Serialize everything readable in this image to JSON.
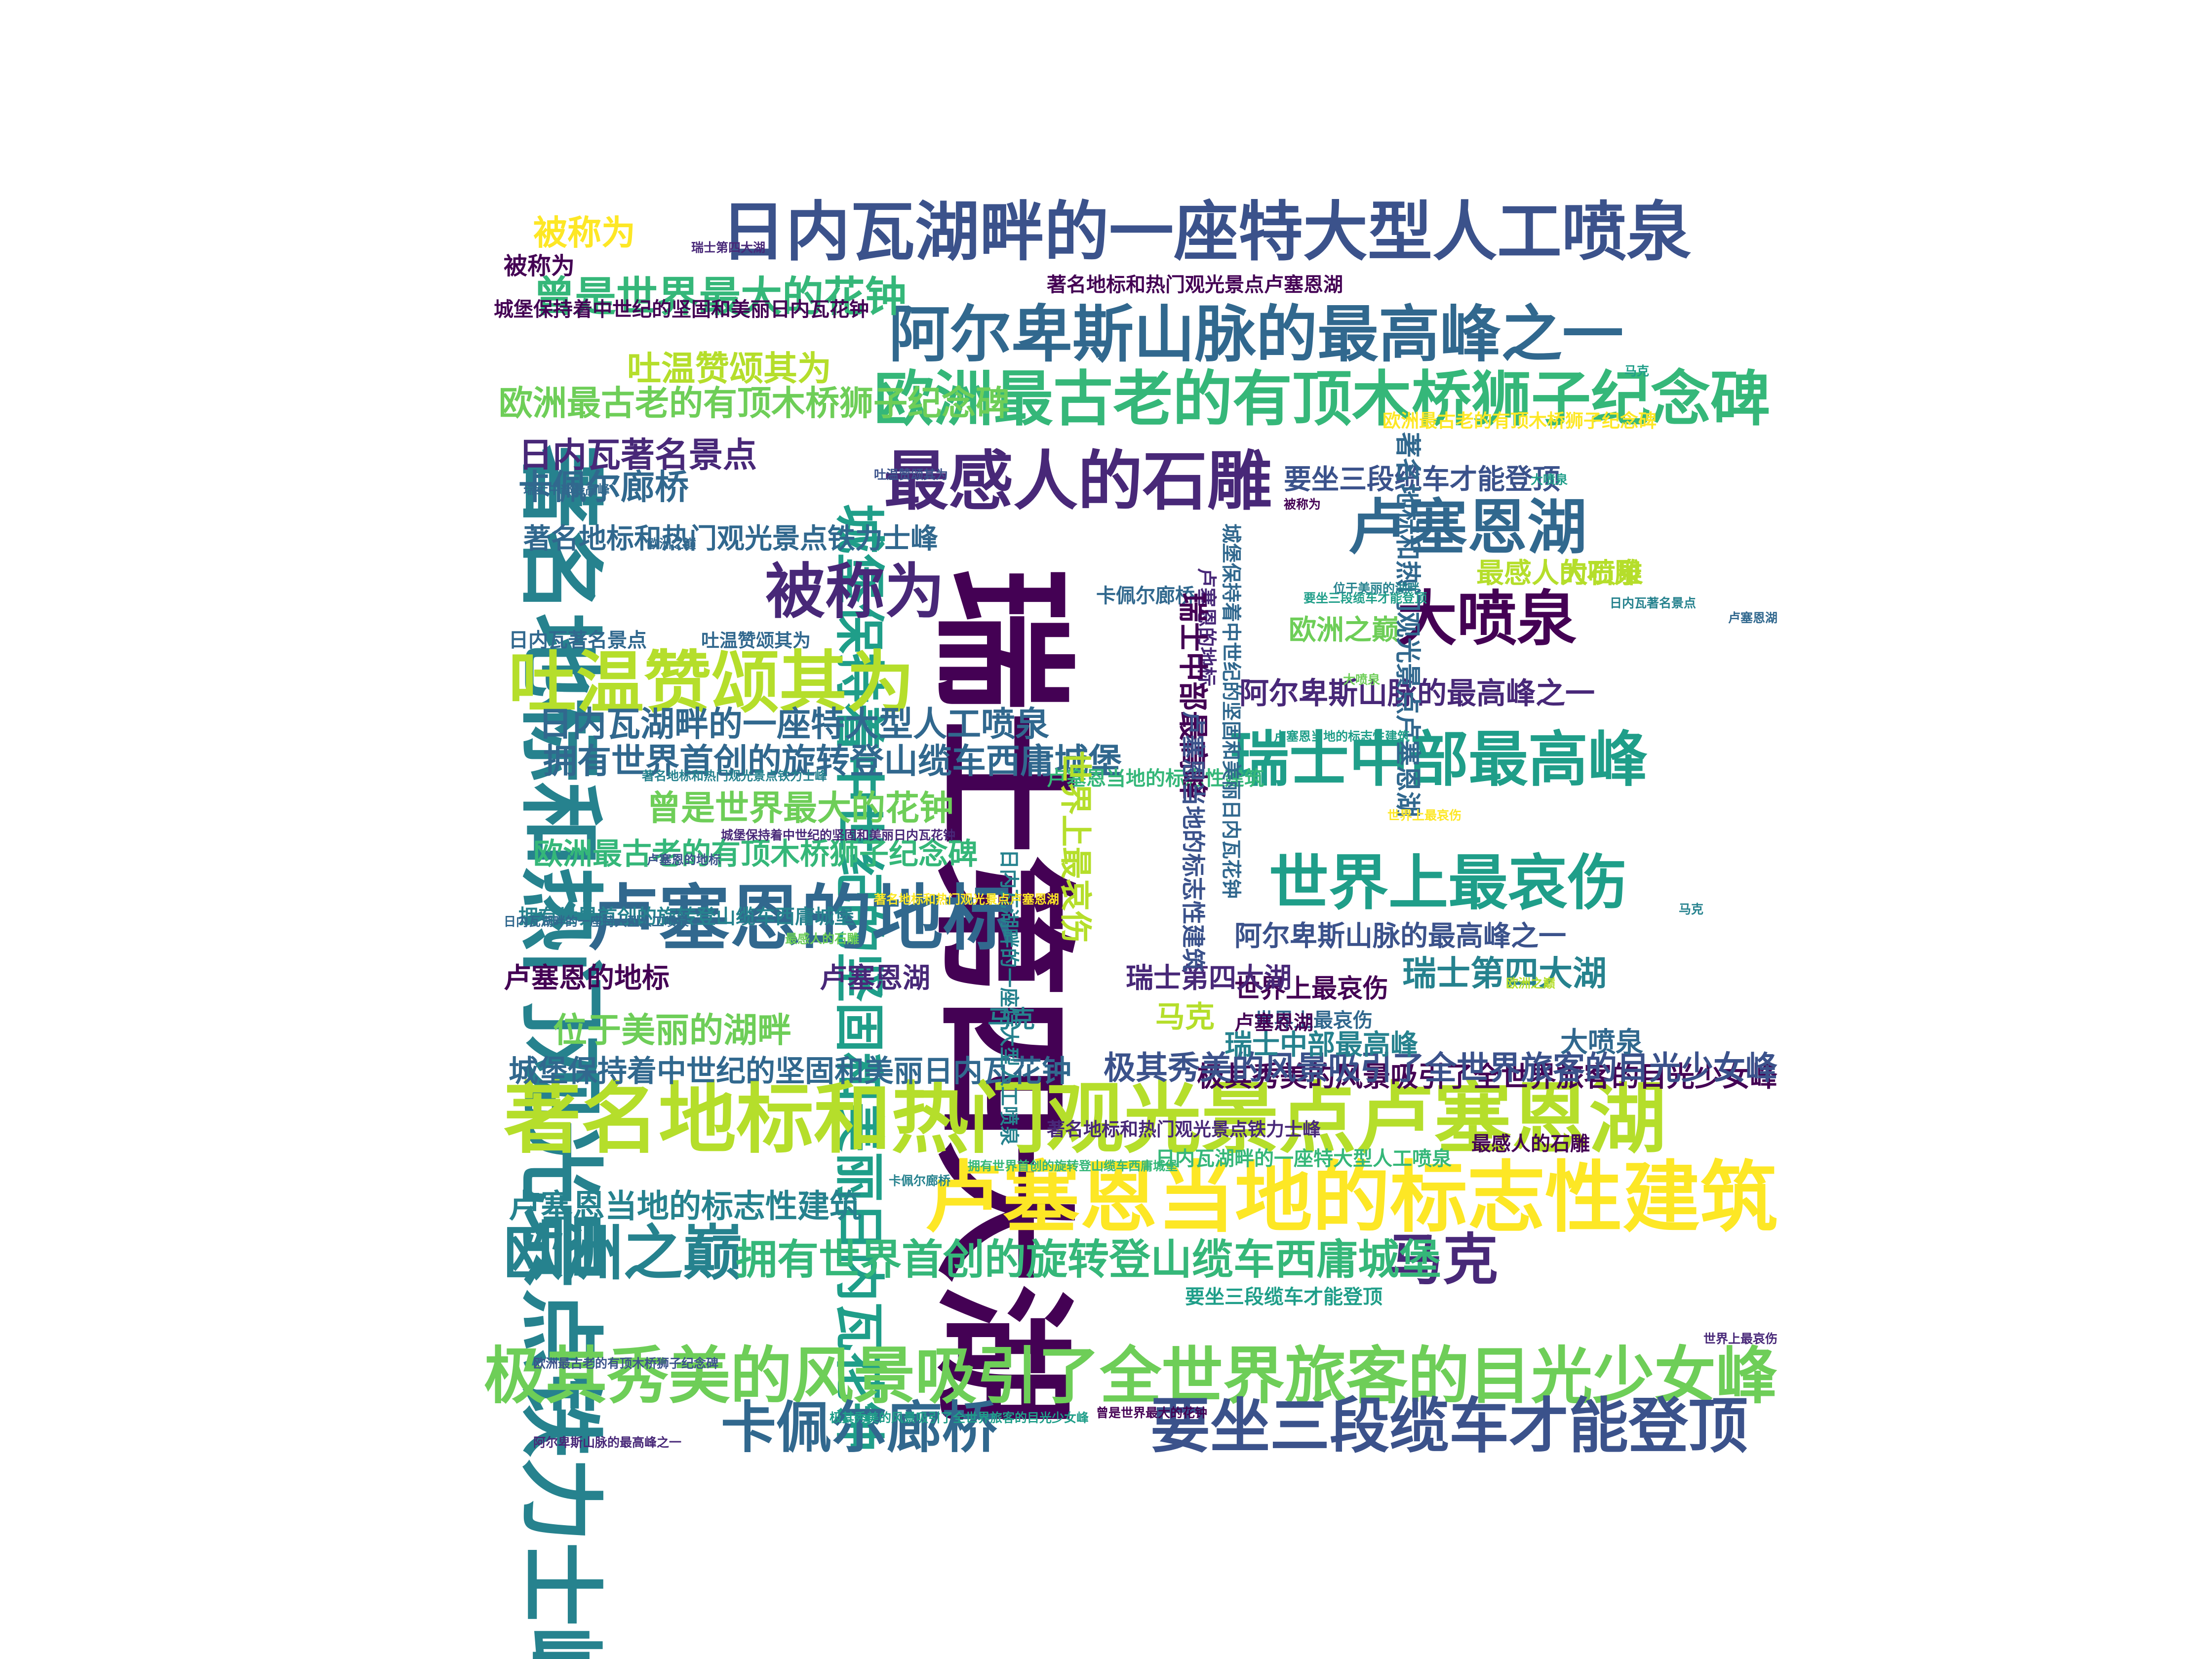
{
  "title": "",
  "colors": {
    "background": "#ffffff",
    "palette": [
      "#440154",
      "#482878",
      "#3b528b",
      "#31688e",
      "#26828e",
      "#1f9e89",
      "#35b779",
      "#6ece58",
      "#b5de2b",
      "#fde725"
    ]
  },
  "words": [
    {
      "text": "瑞士第四大湖",
      "weight": 1.0,
      "orientation": "vertical",
      "color": "#440154"
    },
    {
      "text": "著名地标和热门观光景点铁力士峰",
      "weight": 0.7,
      "orientation": "vertical",
      "color": "#26828e"
    },
    {
      "text": "城堡保持着中世纪的坚固和美丽日内瓦花钟",
      "weight": 0.48,
      "orientation": "vertical",
      "color": "#1f9e89"
    },
    {
      "text": "日内瓦湖畔的一座特大型人工喷泉",
      "weight": 0.58,
      "orientation": "horizontal",
      "color": "#3b528b"
    },
    {
      "text": "阿尔卑斯山脉的最高峰之一",
      "weight": 0.56,
      "orientation": "horizontal",
      "color": "#31688e"
    },
    {
      "text": "欧洲最古老的有顶木桥狮子纪念碑",
      "weight": 0.55,
      "orientation": "horizontal",
      "color": "#35b779"
    },
    {
      "text": "最感人的石雕",
      "weight": 0.58,
      "orientation": "horizontal",
      "color": "#482878"
    },
    {
      "text": "卢塞恩湖",
      "weight": 0.55,
      "orientation": "horizontal",
      "color": "#31688e"
    },
    {
      "text": "被称为",
      "weight": 0.55,
      "orientation": "horizontal",
      "color": "#482878"
    },
    {
      "text": "大喷泉",
      "weight": 0.55,
      "orientation": "horizontal",
      "color": "#440154"
    },
    {
      "text": "吐温赞颂其为",
      "weight": 0.6,
      "orientation": "horizontal",
      "color": "#b5de2b"
    },
    {
      "text": "瑞士中部最高峰",
      "weight": 0.55,
      "orientation": "horizontal",
      "color": "#1f9e89"
    },
    {
      "text": "世界上最哀伤",
      "weight": 0.55,
      "orientation": "horizontal",
      "color": "#1f9e89"
    },
    {
      "text": "卢塞恩的地标",
      "weight": 0.62,
      "orientation": "horizontal",
      "color": "#31688e"
    },
    {
      "text": "著名地标和热门观光景点卢塞恩湖",
      "weight": 0.66,
      "orientation": "horizontal",
      "color": "#b5de2b"
    },
    {
      "text": "卢塞恩当地的标志性建筑",
      "weight": 0.66,
      "orientation": "horizontal",
      "color": "#fde725"
    },
    {
      "text": "欧洲之巅",
      "weight": 0.55,
      "orientation": "horizontal",
      "color": "#26828e"
    },
    {
      "text": "马克",
      "weight": 0.52,
      "orientation": "horizontal",
      "color": "#482878"
    },
    {
      "text": "拥有世界首创的旋转登山缆车西庸城堡",
      "weight": 0.42,
      "orientation": "horizontal",
      "color": "#35b779"
    },
    {
      "text": "极其秀美的风景吸引了全世界旅客的目光少女峰",
      "weight": 0.62,
      "orientation": "horizontal",
      "color": "#6ece58"
    },
    {
      "text": "卡佩尔廊桥",
      "weight": 0.52,
      "orientation": "horizontal",
      "color": "#31688e"
    },
    {
      "text": "要坐三段缆车才能登顶",
      "weight": 0.55,
      "orientation": "horizontal",
      "color": "#3b528b"
    },
    {
      "text": "日内瓦著名景点",
      "weight": 0.36,
      "orientation": "horizontal",
      "color": "#482878"
    },
    {
      "text": "曾是世界最大的花钟",
      "weight": 0.36,
      "orientation": "horizontal",
      "color": "#6ece58"
    },
    {
      "text": "要坐三段缆车才能登顶",
      "weight": 0.3,
      "orientation": "horizontal",
      "color": "#3b528b"
    },
    {
      "text": "著名地标和热门观光景点铁力士峰",
      "weight": 0.3,
      "orientation": "horizontal",
      "color": "#31688e"
    },
    {
      "text": "位于美丽的湖畔",
      "weight": 0.36,
      "orientation": "horizontal",
      "color": "#6ece58"
    },
    {
      "text": "城堡保持着中世纪的坚固和美丽日内瓦花钟",
      "weight": 0.32,
      "orientation": "horizontal",
      "color": "#31688e"
    },
    {
      "text": "卢塞恩当地的标志性建筑",
      "weight": 0.34,
      "orientation": "horizontal",
      "color": "#26828e"
    },
    {
      "text": "阿尔卑斯山脉的最高峰之一",
      "weight": 0.3,
      "orientation": "horizontal",
      "color": "#3b528b"
    },
    {
      "text": "欧洲最古老的有顶木桥狮子纪念碑",
      "weight": 0.32,
      "orientation": "horizontal",
      "color": "#35b779"
    },
    {
      "text": "曾是世界最大的花钟",
      "weight": 0.42,
      "orientation": "horizontal",
      "color": "#35b779"
    },
    {
      "text": "日内瓦湖畔的一座特大型人工喷泉",
      "weight": 0.36,
      "orientation": "horizontal",
      "color": "#31688e"
    },
    {
      "text": "拥有世界首创的旋转登山缆车西庸城堡",
      "weight": 0.36,
      "orientation": "horizontal",
      "color": "#31688e"
    },
    {
      "text": "欧洲最古老的有顶木桥狮子纪念碑",
      "weight": 0.36,
      "orientation": "horizontal",
      "color": "#6ece58"
    },
    {
      "text": "极其秀美的风景吸引了全世界旅客的目光少女峰",
      "weight": 0.3,
      "orientation": "horizontal",
      "color": "#440154"
    },
    {
      "text": "极其秀美的风景吸引了全世界旅客的目光少女峰",
      "weight": 0.34,
      "orientation": "horizontal",
      "color": "#3b528b"
    },
    {
      "text": "阿尔卑斯山脉的最高峰之一",
      "weight": 0.32,
      "orientation": "horizontal",
      "color": "#482878"
    },
    {
      "text": "瑞士第四大湖",
      "weight": 0.36,
      "orientation": "horizontal",
      "color": "#26828e"
    },
    {
      "text": "卢塞恩湖",
      "weight": 0.3,
      "orientation": "horizontal",
      "color": "#482878"
    },
    {
      "text": "卡佩尔廊桥",
      "weight": 0.36,
      "orientation": "horizontal",
      "color": "#31688e"
    },
    {
      "text": "吐温赞颂其为",
      "weight": 0.36,
      "orientation": "horizontal",
      "color": "#b5de2b"
    },
    {
      "text": "被称为",
      "weight": 0.36,
      "orientation": "horizontal",
      "color": "#fde725"
    },
    {
      "text": "被称为",
      "weight": 0.26,
      "orientation": "horizontal",
      "color": "#440154"
    },
    {
      "text": "欧洲之巅",
      "weight": 0.3,
      "orientation": "horizontal",
      "color": "#6ece58"
    },
    {
      "text": "大喷泉",
      "weight": 0.3,
      "orientation": "horizontal",
      "color": "#31688e"
    },
    {
      "text": "大喷泉",
      "weight": 0.3,
      "orientation": "horizontal",
      "color": "#b5de2b"
    },
    {
      "text": "最感人的石雕",
      "weight": 0.3,
      "orientation": "horizontal",
      "color": "#b5de2b"
    },
    {
      "text": "最感人的石雕",
      "weight": 0.22,
      "orientation": "horizontal",
      "color": "#440154"
    },
    {
      "text": "卢塞恩的地标",
      "weight": 0.3,
      "orientation": "horizontal",
      "color": "#440154"
    },
    {
      "text": "世界上最哀伤",
      "weight": 0.28,
      "orientation": "horizontal",
      "color": "#440154"
    },
    {
      "text": "世界上最哀伤",
      "weight": 0.22,
      "orientation": "horizontal",
      "color": "#31688e"
    },
    {
      "text": "瑞士中部最高峰",
      "weight": 0.3,
      "orientation": "horizontal",
      "color": "#26828e"
    },
    {
      "text": "瑞士第四大湖",
      "weight": 0.3,
      "orientation": "horizontal",
      "color": "#482878"
    },
    {
      "text": "马克",
      "weight": 0.32,
      "orientation": "horizontal",
      "color": "#b5de2b"
    },
    {
      "text": "马克",
      "weight": 0.26,
      "orientation": "horizontal",
      "color": "#26828e"
    },
    {
      "text": "日内瓦著名景点",
      "weight": 0.22,
      "orientation": "horizontal",
      "color": "#31688e"
    },
    {
      "text": "日内瓦湖畔的一座特大型人工喷泉",
      "weight": 0.22,
      "orientation": "horizontal",
      "color": "#35b779"
    },
    {
      "text": "要坐三段缆车才能登顶",
      "weight": 0.22,
      "orientation": "horizontal",
      "color": "#1f9e89"
    },
    {
      "text": "著名地标和热门观光景点卢塞恩湖",
      "weight": 0.22,
      "orientation": "horizontal",
      "color": "#440154"
    },
    {
      "text": "卢塞恩湖",
      "weight": 0.22,
      "orientation": "horizontal",
      "color": "#440154"
    },
    {
      "text": "卡佩尔廊桥",
      "weight": 0.22,
      "orientation": "horizontal",
      "color": "#31688e"
    },
    {
      "text": "吐温赞颂其为",
      "weight": 0.2,
      "orientation": "horizontal",
      "color": "#31688e"
    },
    {
      "text": "城堡保持着中世纪的坚固和美丽日内瓦花钟",
      "weight": 0.22,
      "orientation": "horizontal",
      "color": "#440154"
    },
    {
      "text": "拥有世界首创的旋转登山缆车西庸城堡",
      "weight": 0.22,
      "orientation": "horizontal",
      "color": "#26828e"
    },
    {
      "text": "欧洲最古老的有顶木桥狮子纪念碑",
      "weight": 0.2,
      "orientation": "horizontal",
      "color": "#fde725"
    },
    {
      "text": "著名地标和热门观光景点铁力士峰",
      "weight": 0.2,
      "orientation": "horizontal",
      "color": "#482878"
    },
    {
      "text": "卢塞恩当地的标志性建筑",
      "weight": 0.22,
      "orientation": "horizontal",
      "color": "#35b779"
    },
    {
      "text": "著名地标和热门观光景点卢塞恩湖",
      "weight": 0.28,
      "orientation": "vertical",
      "color": "#31688e"
    },
    {
      "text": "城堡保持着中世纪的坚固和美丽日内瓦花钟",
      "weight": 0.22,
      "orientation": "vertical",
      "color": "#31688e"
    },
    {
      "text": "世界上最哀伤",
      "weight": 0.34,
      "orientation": "vertical",
      "color": "#b5de2b"
    },
    {
      "text": "日内瓦湖畔的一座特大型人工喷泉",
      "weight": 0.22,
      "orientation": "vertical",
      "color": "#26828e"
    },
    {
      "text": "卢塞恩的地标",
      "weight": 0.22,
      "orientation": "vertical",
      "color": "#482878"
    },
    {
      "text": "瑞士中部最高峰",
      "weight": 0.32,
      "orientation": "vertical",
      "color": "#440154"
    },
    {
      "text": "卢塞恩当地的标志性建筑",
      "weight": 0.26,
      "orientation": "vertical",
      "color": "#3b528b"
    },
    {
      "text": "被称为",
      "weight": 0.12,
      "orientation": "horizontal",
      "color": "#440154"
    },
    {
      "text": "卡佩尔廊桥",
      "weight": 0.12,
      "orientation": "horizontal",
      "color": "#26828e"
    },
    {
      "text": "欧洲之巅",
      "weight": 0.12,
      "orientation": "horizontal",
      "color": "#31688e"
    },
    {
      "text": "瑞士第四大湖",
      "weight": 0.12,
      "orientation": "horizontal",
      "color": "#482878"
    },
    {
      "text": "大喷泉",
      "weight": 0.12,
      "orientation": "horizontal",
      "color": "#1f9e89"
    },
    {
      "text": "马克",
      "weight": 0.12,
      "orientation": "horizontal",
      "color": "#26828e"
    },
    {
      "text": "卢塞恩湖",
      "weight": 0.12,
      "orientation": "horizontal",
      "color": "#31688e"
    },
    {
      "text": "日内瓦著名景点",
      "weight": 0.12,
      "orientation": "horizontal",
      "color": "#26828e"
    },
    {
      "text": "世界上最哀伤",
      "weight": 0.12,
      "orientation": "horizontal",
      "color": "#482878"
    },
    {
      "text": "卢塞恩当地的标志性建筑",
      "weight": 0.12,
      "orientation": "horizontal",
      "color": "#1f9e89"
    },
    {
      "text": "要坐三段缆车才能登顶",
      "weight": 0.12,
      "orientation": "horizontal",
      "color": "#1f9e89"
    },
    {
      "text": "曾是世界最大的花钟",
      "weight": 0.12,
      "orientation": "horizontal",
      "color": "#440154"
    },
    {
      "text": "极其秀美的风景吸引了全世界旅客的目光少女峰",
      "weight": 0.12,
      "orientation": "horizontal",
      "color": "#1f9e89"
    },
    {
      "text": "拥有世界首创的旋转登山缆车西庸城堡",
      "weight": 0.12,
      "orientation": "horizontal",
      "color": "#35b779"
    },
    {
      "text": "吐温赞颂其为",
      "weight": 0.12,
      "orientation": "horizontal",
      "color": "#3b528b"
    },
    {
      "text": "位于美丽的湖畔",
      "weight": 0.12,
      "orientation": "horizontal",
      "color": "#26828e"
    },
    {
      "text": "最感人的石雕",
      "weight": 0.12,
      "orientation": "horizontal",
      "color": "#6ece58"
    },
    {
      "text": "著名地标和热门观光景点卢塞恩湖",
      "weight": 0.12,
      "orientation": "horizontal",
      "color": "#fde725"
    },
    {
      "text": "日内瓦湖畔的一座特大型人工喷泉",
      "weight": 0.12,
      "orientation": "horizontal",
      "color": "#31688e"
    },
    {
      "text": "欧洲最古老的有顶木桥狮子纪念碑",
      "weight": 0.12,
      "orientation": "horizontal",
      "color": "#3b528b"
    },
    {
      "text": "阿尔卑斯山脉的最高峰之一",
      "weight": 0.12,
      "orientation": "horizontal",
      "color": "#482878"
    },
    {
      "text": "卢塞恩的地标",
      "weight": 0.12,
      "orientation": "horizontal",
      "color": "#3b528b"
    },
    {
      "text": "瑞士中部最高峰",
      "weight": 0.12,
      "orientation": "horizontal",
      "color": "#31688e"
    },
    {
      "text": "城堡保持着中世纪的坚固和美丽日内瓦花钟",
      "weight": 0.12,
      "orientation": "horizontal",
      "color": "#482878"
    },
    {
      "text": "著名地标和热门观光景点铁力士峰",
      "weight": 0.12,
      "orientation": "horizontal",
      "color": "#26828e"
    },
    {
      "text": "大喷泉",
      "weight": 0.12,
      "orientation": "horizontal",
      "color": "#6ece58"
    },
    {
      "text": "马克",
      "weight": 0.12,
      "orientation": "horizontal",
      "color": "#1f9e89"
    },
    {
      "text": "世界上最哀伤",
      "weight": 0.12,
      "orientation": "horizontal",
      "color": "#fde725"
    },
    {
      "text": "欧洲之巅",
      "weight": 0.12,
      "orientation": "horizontal",
      "color": "#b5de2b"
    }
  ]
}
